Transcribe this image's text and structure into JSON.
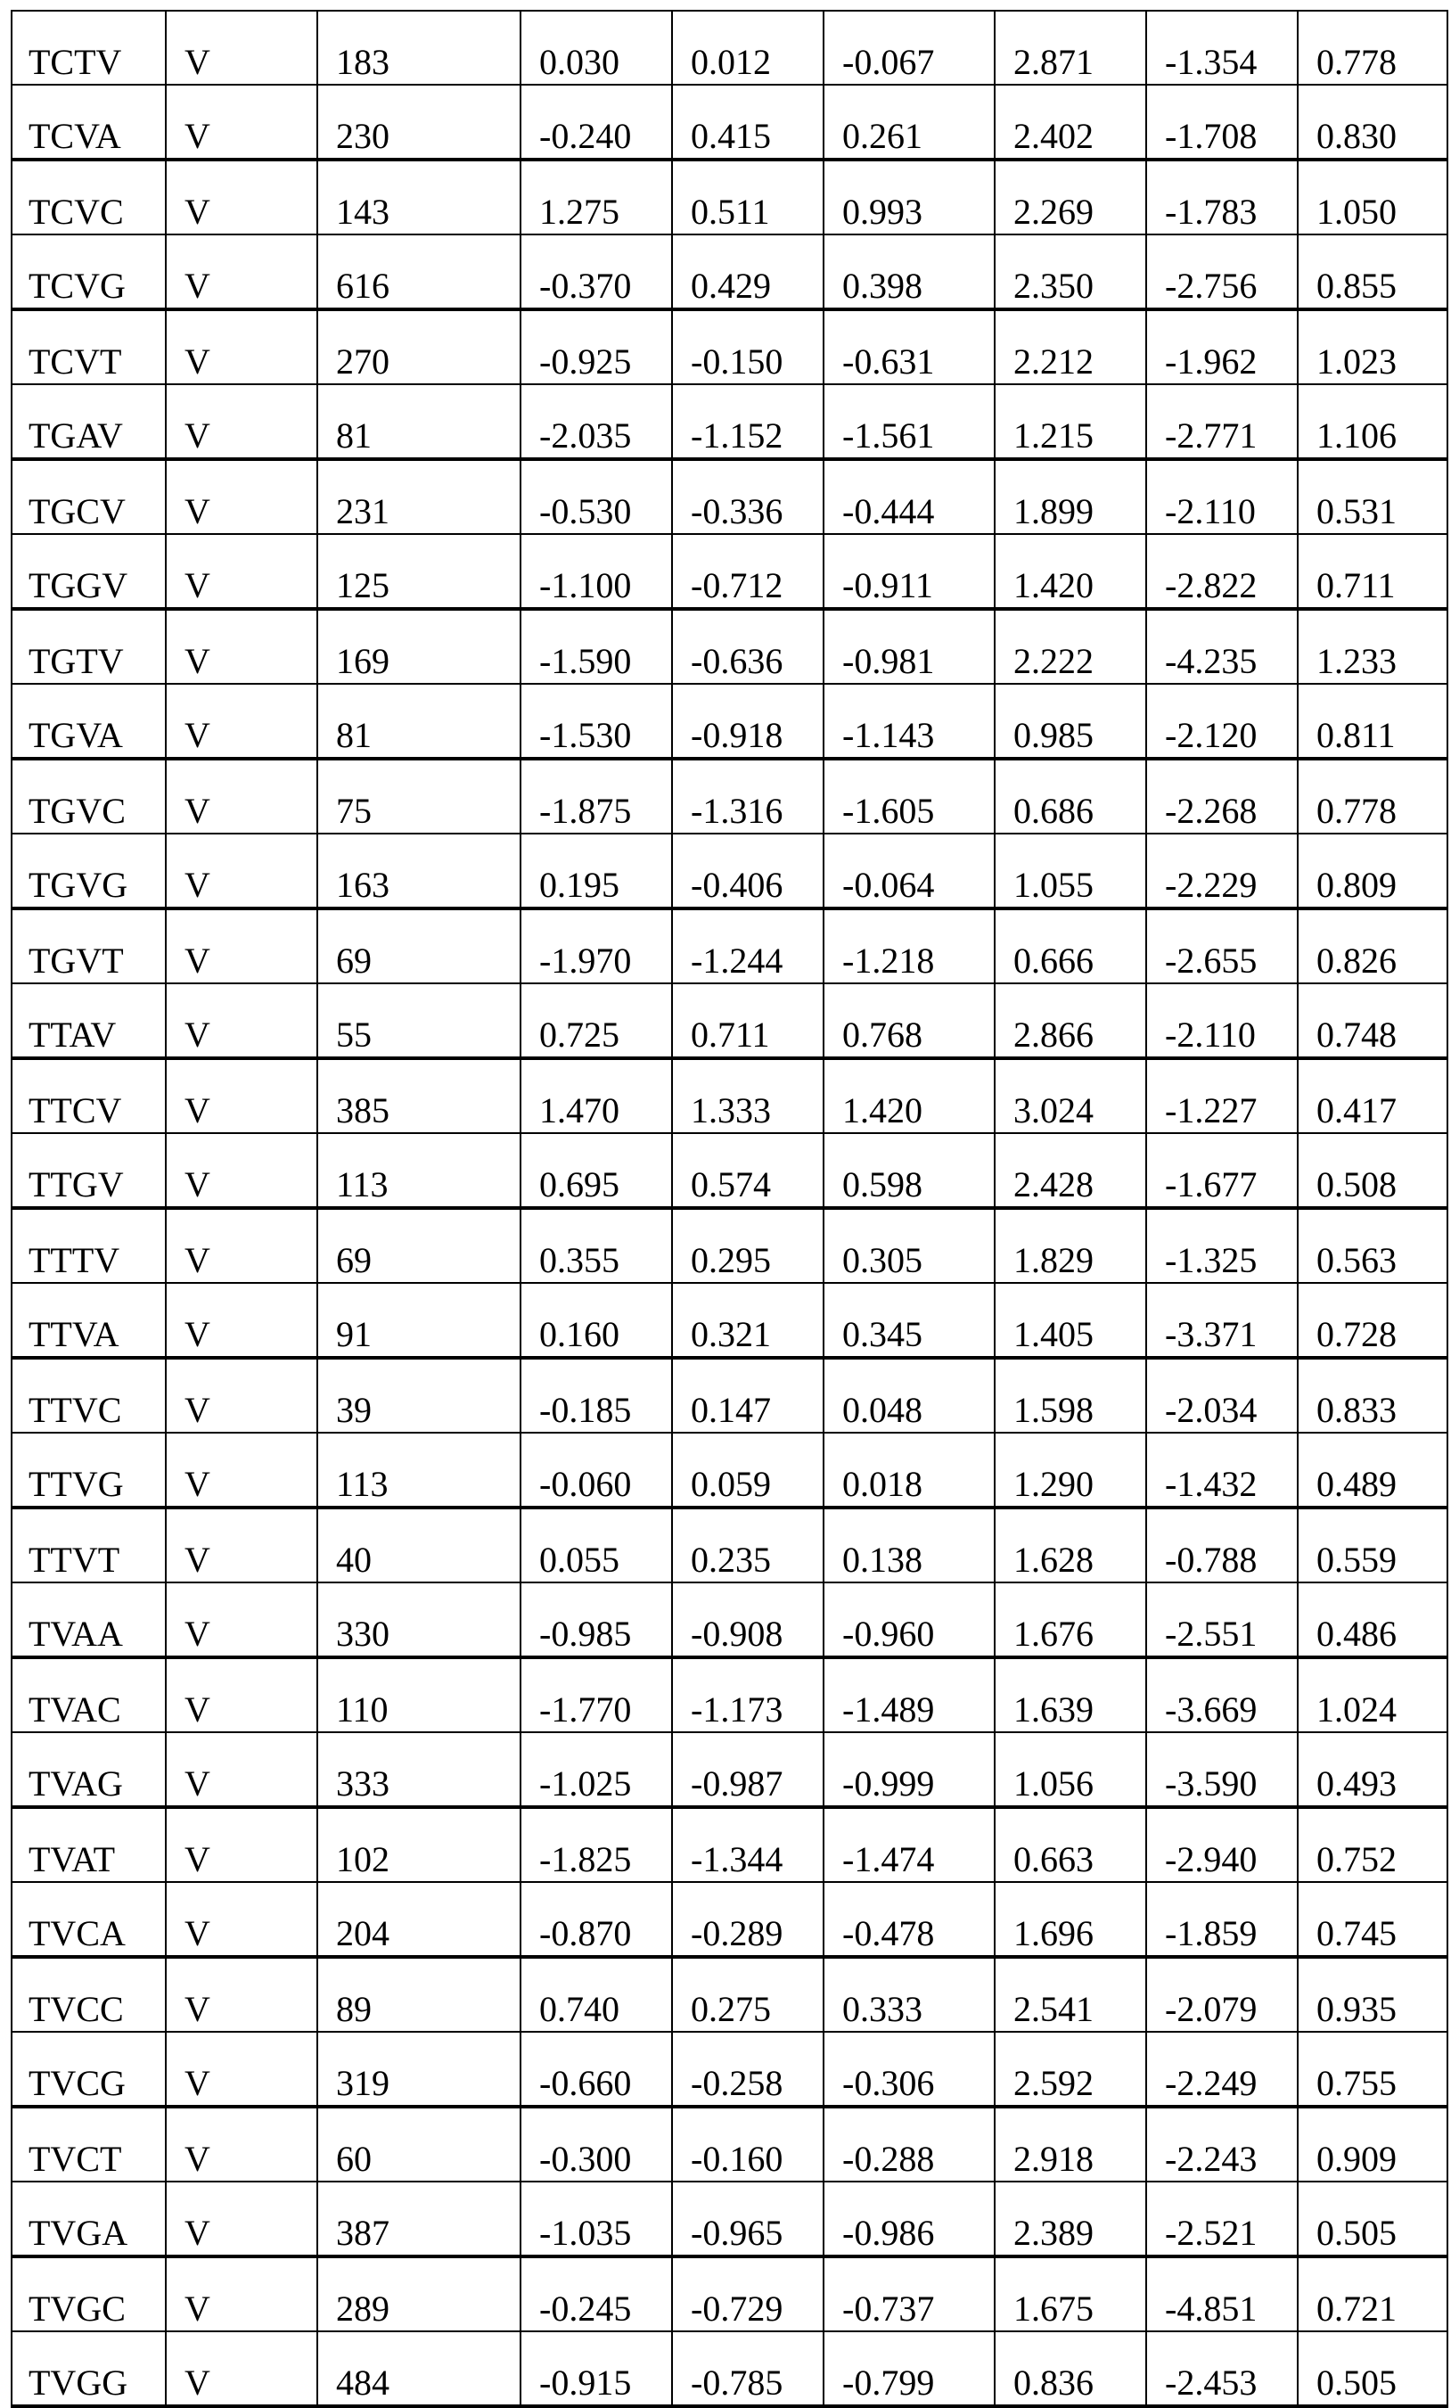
{
  "table": {
    "rows": [
      [
        "TCTV",
        "V",
        "183",
        "0.030",
        "0.012",
        "-0.067",
        "2.871",
        "-1.354",
        "0.778"
      ],
      [
        "TCVA",
        "V",
        "230",
        "-0.240",
        "0.415",
        "0.261",
        "2.402",
        "-1.708",
        "0.830"
      ],
      [
        "TCVC",
        "V",
        "143",
        "1.275",
        "0.511",
        "0.993",
        "2.269",
        "-1.783",
        "1.050"
      ],
      [
        "TCVG",
        "V",
        "616",
        "-0.370",
        "0.429",
        "0.398",
        "2.350",
        "-2.756",
        "0.855"
      ],
      [
        "TCVT",
        "V",
        "270",
        "-0.925",
        "-0.150",
        "-0.631",
        "2.212",
        "-1.962",
        "1.023"
      ],
      [
        "TGAV",
        "V",
        "81",
        "-2.035",
        "-1.152",
        "-1.561",
        "1.215",
        "-2.771",
        "1.106"
      ],
      [
        "TGCV",
        "V",
        "231",
        "-0.530",
        "-0.336",
        "-0.444",
        "1.899",
        "-2.110",
        "0.531"
      ],
      [
        "TGGV",
        "V",
        "125",
        "-1.100",
        "-0.712",
        "-0.911",
        "1.420",
        "-2.822",
        "0.711"
      ],
      [
        "TGTV",
        "V",
        "169",
        "-1.590",
        "-0.636",
        "-0.981",
        "2.222",
        "-4.235",
        "1.233"
      ],
      [
        "TGVA",
        "V",
        "81",
        "-1.530",
        "-0.918",
        "-1.143",
        "0.985",
        "-2.120",
        "0.811"
      ],
      [
        "TGVC",
        "V",
        "75",
        "-1.875",
        "-1.316",
        "-1.605",
        "0.686",
        "-2.268",
        "0.778"
      ],
      [
        "TGVG",
        "V",
        "163",
        "0.195",
        "-0.406",
        "-0.064",
        "1.055",
        "-2.229",
        "0.809"
      ],
      [
        "TGVT",
        "V",
        "69",
        "-1.970",
        "-1.244",
        "-1.218",
        "0.666",
        "-2.655",
        "0.826"
      ],
      [
        "TTAV",
        "V",
        "55",
        "0.725",
        "0.711",
        "0.768",
        "2.866",
        "-2.110",
        "0.748"
      ],
      [
        "TTCV",
        "V",
        "385",
        "1.470",
        "1.333",
        "1.420",
        "3.024",
        "-1.227",
        "0.417"
      ],
      [
        "TTGV",
        "V",
        "113",
        "0.695",
        "0.574",
        "0.598",
        "2.428",
        "-1.677",
        "0.508"
      ],
      [
        "TTTV",
        "V",
        "69",
        "0.355",
        "0.295",
        "0.305",
        "1.829",
        "-1.325",
        "0.563"
      ],
      [
        "TTVA",
        "V",
        "91",
        "0.160",
        "0.321",
        "0.345",
        "1.405",
        "-3.371",
        "0.728"
      ],
      [
        "TTVC",
        "V",
        "39",
        "-0.185",
        "0.147",
        "0.048",
        "1.598",
        "-2.034",
        "0.833"
      ],
      [
        "TTVG",
        "V",
        "113",
        "-0.060",
        "0.059",
        "0.018",
        "1.290",
        "-1.432",
        "0.489"
      ],
      [
        "TTVT",
        "V",
        "40",
        "0.055",
        "0.235",
        "0.138",
        "1.628",
        "-0.788",
        "0.559"
      ],
      [
        "TVAA",
        "V",
        "330",
        "-0.985",
        "-0.908",
        "-0.960",
        "1.676",
        "-2.551",
        "0.486"
      ],
      [
        "TVAC",
        "V",
        "110",
        "-1.770",
        "-1.173",
        "-1.489",
        "1.639",
        "-3.669",
        "1.024"
      ],
      [
        "TVAG",
        "V",
        "333",
        "-1.025",
        "-0.987",
        "-0.999",
        "1.056",
        "-3.590",
        "0.493"
      ],
      [
        "TVAT",
        "V",
        "102",
        "-1.825",
        "-1.344",
        "-1.474",
        "0.663",
        "-2.940",
        "0.752"
      ],
      [
        "TVCA",
        "V",
        "204",
        "-0.870",
        "-0.289",
        "-0.478",
        "1.696",
        "-1.859",
        "0.745"
      ],
      [
        "TVCC",
        "V",
        "89",
        "0.740",
        "0.275",
        "0.333",
        "2.541",
        "-2.079",
        "0.935"
      ],
      [
        "TVCG",
        "V",
        "319",
        "-0.660",
        "-0.258",
        "-0.306",
        "2.592",
        "-2.249",
        "0.755"
      ],
      [
        "TVCT",
        "V",
        "60",
        "-0.300",
        "-0.160",
        "-0.288",
        "2.918",
        "-2.243",
        "0.909"
      ],
      [
        "TVGA",
        "V",
        "387",
        "-1.035",
        "-0.965",
        "-0.986",
        "2.389",
        "-2.521",
        "0.505"
      ],
      [
        "TVGC",
        "V",
        "289",
        "-0.245",
        "-0.729",
        "-0.737",
        "1.675",
        "-4.851",
        "0.721"
      ],
      [
        "TVGG",
        "V",
        "484",
        "-0.915",
        "-0.785",
        "-0.799",
        "0.836",
        "-2.453",
        "0.505"
      ]
    ]
  }
}
